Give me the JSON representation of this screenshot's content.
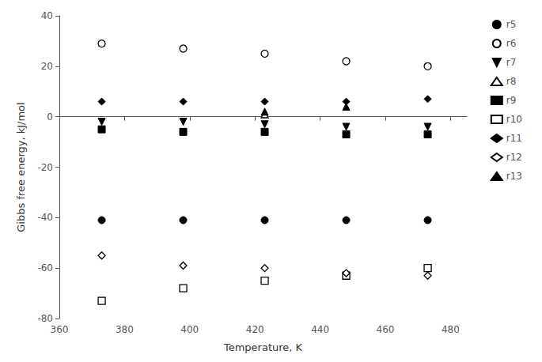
{
  "chart_data": {
    "type": "scatter",
    "xlabel": "Temperature, K",
    "ylabel": "Gibbs free energy, kJ/mol",
    "x": [
      373,
      398,
      423,
      448,
      473
    ],
    "series": [
      {
        "name": "r5",
        "color": "black",
        "marker": "circle",
        "values": [
          -41,
          -41,
          -41,
          -41,
          -41
        ]
      },
      {
        "name": "r6",
        "color": "black",
        "marker": "circle-open",
        "values": [
          29,
          27,
          25,
          22,
          20
        ]
      },
      {
        "name": "r7",
        "color": "black",
        "marker": "triangle-down",
        "values": [
          -2,
          -2,
          -3,
          -4,
          -4
        ]
      },
      {
        "name": "r8",
        "color": "black",
        "marker": "triangle-up-open",
        "values": [
          null,
          null,
          1,
          null,
          null
        ]
      },
      {
        "name": "r9",
        "color": "black",
        "marker": "square",
        "values": [
          -5,
          -6,
          -6,
          -7,
          -7
        ]
      },
      {
        "name": "r10",
        "color": "black",
        "marker": "square-open",
        "values": [
          -73,
          -68,
          -65,
          -63,
          -60
        ]
      },
      {
        "name": "r11",
        "color": "black",
        "marker": "diamond",
        "values": [
          6,
          6,
          6,
          6,
          7
        ]
      },
      {
        "name": "r12",
        "color": "black",
        "marker": "diamond-open",
        "values": [
          -55,
          -59,
          -60,
          -62,
          -63
        ]
      },
      {
        "name": "r13",
        "color": "black",
        "marker": "triangle-up",
        "values": [
          null,
          null,
          2,
          4,
          null
        ]
      }
    ],
    "xlim": [
      360,
      485
    ],
    "ylim": [
      -80,
      40
    ],
    "xticks": [
      360,
      380,
      400,
      420,
      440,
      460,
      480
    ],
    "yticks": [
      -80,
      -60,
      -40,
      -20,
      0,
      20,
      40
    ],
    "grid": false,
    "legend": "right"
  }
}
